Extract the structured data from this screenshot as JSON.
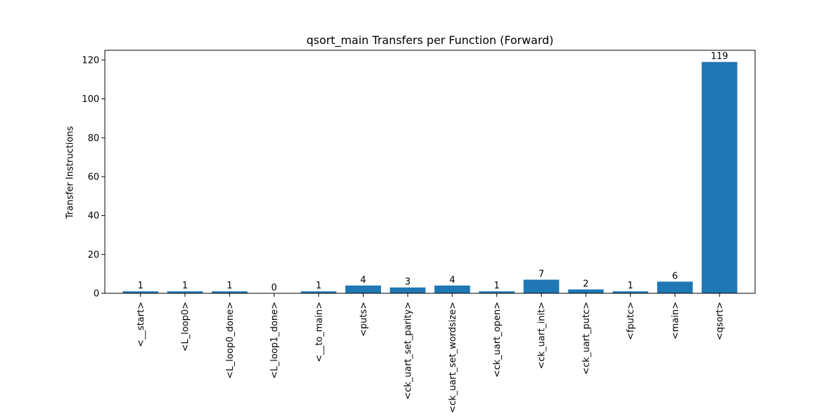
{
  "chart_data": {
    "type": "bar",
    "title": "qsort_main Transfers per Function (Forward)",
    "xlabel": "",
    "ylabel": "Transfer Instructions",
    "categories": [
      "<__start>",
      "<L_loop0>",
      "<L_loop0_done>",
      "<L_loop1_done>",
      "<__to_main>",
      "<puts>",
      "<ck_uart_set_parity>",
      "<ck_uart_set_wordsize>",
      "<ck_uart_open>",
      "<ck_uart_init>",
      "<ck_uart_putc>",
      "<fputc>",
      "<main>",
      "<qsort>"
    ],
    "values": [
      1,
      1,
      1,
      0,
      1,
      4,
      3,
      4,
      1,
      7,
      2,
      1,
      6,
      119
    ],
    "ylim": [
      0,
      125
    ],
    "yticks": [
      0,
      20,
      40,
      60,
      80,
      100,
      120
    ],
    "bar_color": "#1f77b4",
    "grid": false,
    "legend": "none"
  }
}
